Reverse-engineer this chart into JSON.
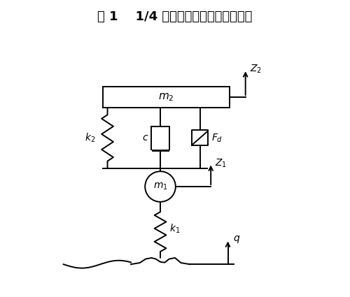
{
  "title": "图 1    1/4 车辆悬架二自由度力学模型",
  "title_fontsize": 13,
  "title_fontweight": "bold",
  "bg_color": "#ffffff",
  "line_color": "#000000",
  "lw": 1.4,
  "fig_width": 5.0,
  "fig_height": 4.25,
  "dpi": 100
}
